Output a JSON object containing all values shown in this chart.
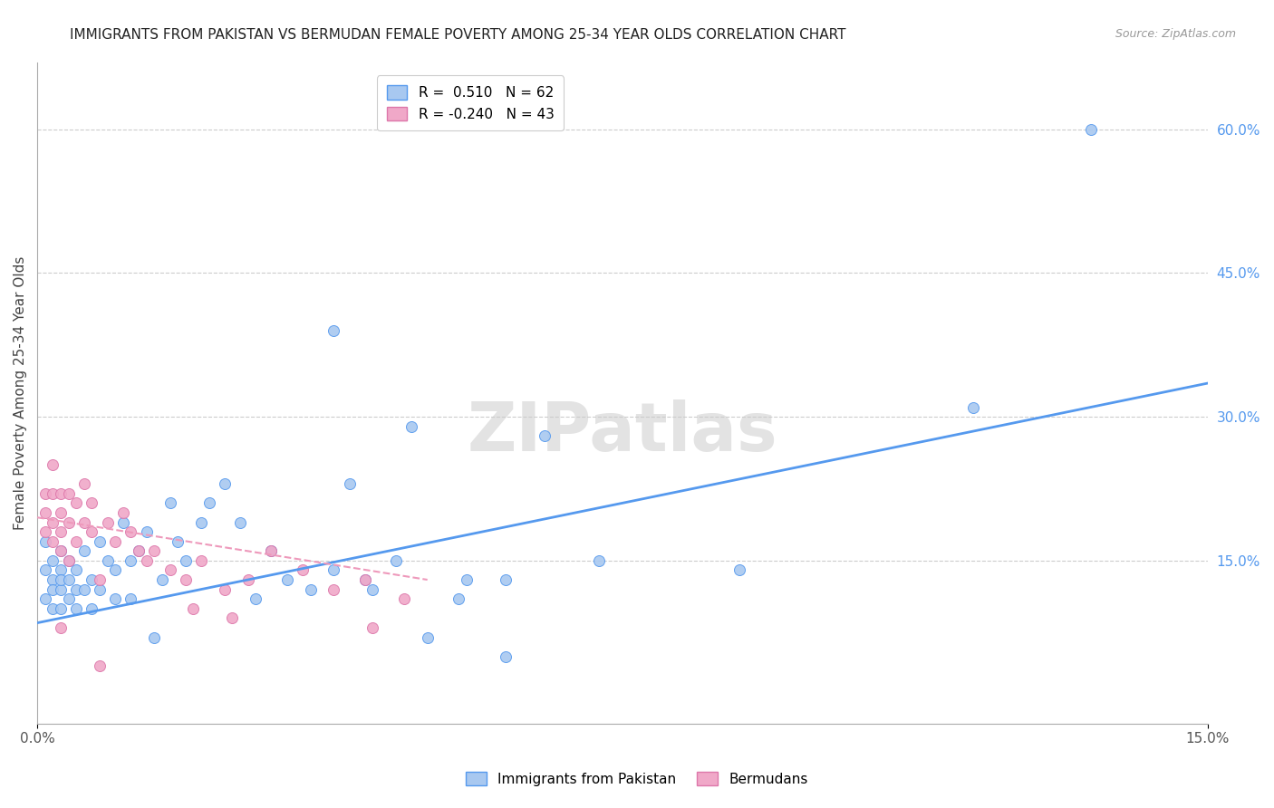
{
  "title": "IMMIGRANTS FROM PAKISTAN VS BERMUDAN FEMALE POVERTY AMONG 25-34 YEAR OLDS CORRELATION CHART",
  "source": "Source: ZipAtlas.com",
  "ylabel": "Female Poverty Among 25-34 Year Olds",
  "ylabel_right_ticks": [
    "60.0%",
    "45.0%",
    "30.0%",
    "15.0%"
  ],
  "ylabel_right_vals": [
    0.6,
    0.45,
    0.3,
    0.15
  ],
  "xlim": [
    0.0,
    0.15
  ],
  "ylim": [
    -0.02,
    0.67
  ],
  "watermark": "ZIPatlas",
  "legend_blue_R": "R =  0.510",
  "legend_blue_N": "N = 62",
  "legend_pink_R": "R = -0.240",
  "legend_pink_N": "N = 43",
  "blue_color": "#a8c8f0",
  "pink_color": "#f0a8c8",
  "blue_line_color": "#5599ee",
  "pink_line_color": "#ee99bb",
  "title_fontsize": 11,
  "source_fontsize": 9,
  "pakistan_x": [
    0.001,
    0.001,
    0.001,
    0.002,
    0.002,
    0.002,
    0.002,
    0.003,
    0.003,
    0.003,
    0.003,
    0.003,
    0.004,
    0.004,
    0.004,
    0.005,
    0.005,
    0.005,
    0.006,
    0.006,
    0.007,
    0.007,
    0.008,
    0.008,
    0.009,
    0.01,
    0.01,
    0.011,
    0.012,
    0.012,
    0.013,
    0.014,
    0.015,
    0.016,
    0.017,
    0.018,
    0.019,
    0.021,
    0.022,
    0.024,
    0.026,
    0.028,
    0.03,
    0.032,
    0.035,
    0.038,
    0.04,
    0.043,
    0.046,
    0.05,
    0.054,
    0.06,
    0.065,
    0.072,
    0.038,
    0.042,
    0.048,
    0.055,
    0.06,
    0.09,
    0.12,
    0.135
  ],
  "pakistan_y": [
    0.14,
    0.17,
    0.11,
    0.13,
    0.15,
    0.1,
    0.12,
    0.14,
    0.12,
    0.16,
    0.1,
    0.13,
    0.15,
    0.11,
    0.13,
    0.14,
    0.1,
    0.12,
    0.16,
    0.12,
    0.13,
    0.1,
    0.17,
    0.12,
    0.15,
    0.14,
    0.11,
    0.19,
    0.15,
    0.11,
    0.16,
    0.18,
    0.07,
    0.13,
    0.21,
    0.17,
    0.15,
    0.19,
    0.21,
    0.23,
    0.19,
    0.11,
    0.16,
    0.13,
    0.12,
    0.14,
    0.23,
    0.12,
    0.15,
    0.07,
    0.11,
    0.13,
    0.28,
    0.15,
    0.39,
    0.13,
    0.29,
    0.13,
    0.05,
    0.14,
    0.31,
    0.6
  ],
  "bermuda_x": [
    0.001,
    0.001,
    0.001,
    0.002,
    0.002,
    0.002,
    0.002,
    0.003,
    0.003,
    0.003,
    0.003,
    0.004,
    0.004,
    0.004,
    0.005,
    0.005,
    0.006,
    0.006,
    0.007,
    0.007,
    0.008,
    0.009,
    0.01,
    0.011,
    0.012,
    0.013,
    0.014,
    0.015,
    0.017,
    0.019,
    0.021,
    0.024,
    0.027,
    0.03,
    0.034,
    0.038,
    0.042,
    0.047,
    0.043,
    0.02,
    0.025,
    0.008,
    0.003
  ],
  "bermuda_y": [
    0.22,
    0.2,
    0.18,
    0.25,
    0.22,
    0.19,
    0.17,
    0.22,
    0.2,
    0.18,
    0.16,
    0.22,
    0.19,
    0.15,
    0.21,
    0.17,
    0.19,
    0.23,
    0.18,
    0.21,
    0.13,
    0.19,
    0.17,
    0.2,
    0.18,
    0.16,
    0.15,
    0.16,
    0.14,
    0.13,
    0.15,
    0.12,
    0.13,
    0.16,
    0.14,
    0.12,
    0.13,
    0.11,
    0.08,
    0.1,
    0.09,
    0.04,
    0.08
  ],
  "pak_line_x0": 0.0,
  "pak_line_y0": 0.085,
  "pak_line_x1": 0.15,
  "pak_line_y1": 0.335,
  "berm_line_x0": 0.0,
  "berm_line_y0": 0.195,
  "berm_line_x1": 0.05,
  "berm_line_y1": 0.13
}
